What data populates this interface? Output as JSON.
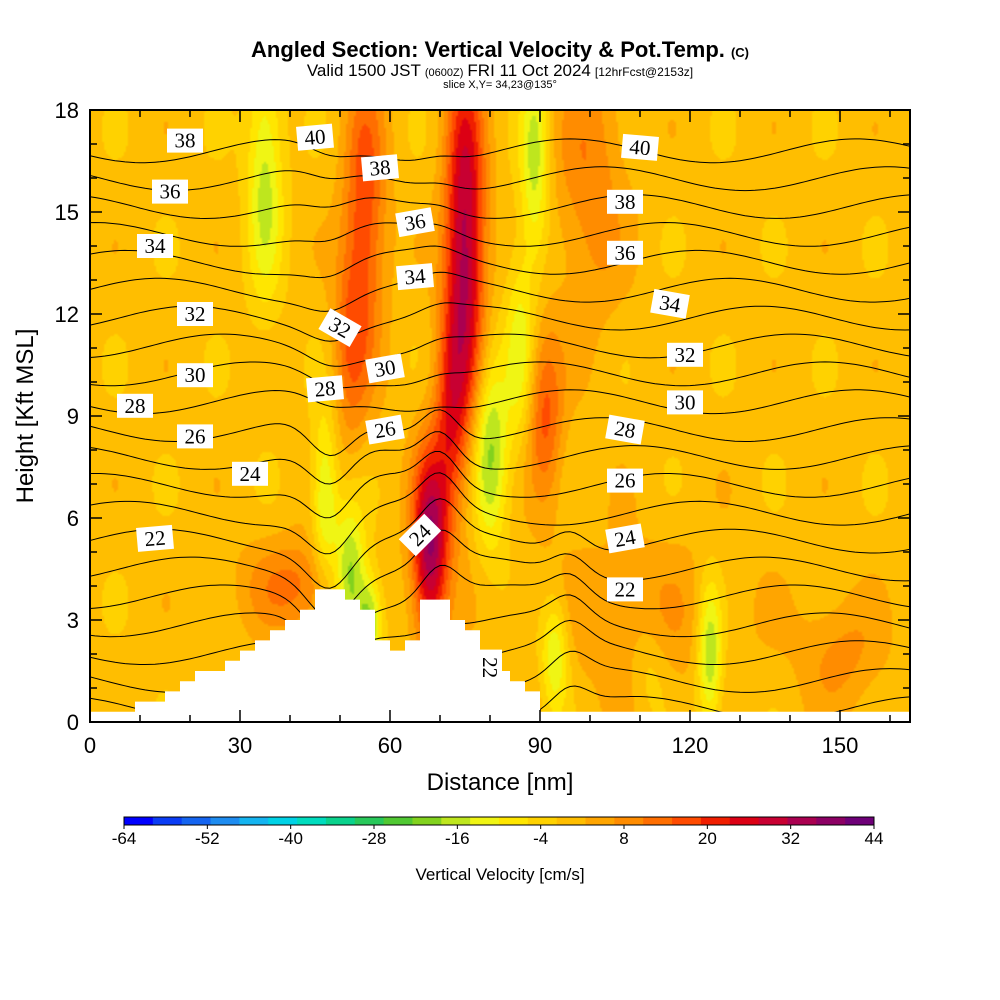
{
  "chart_data": {
    "type": "heatmap",
    "title": "Angled Section: Vertical Velocity & Pot.Temp.",
    "title_mark": "(C)",
    "subtitle_parts": [
      "Valid 1500 JST",
      "(0600Z)",
      "FRI 11 Oct 2024",
      "[12hrFcst@2153z]"
    ],
    "slice_label": "slice X,Y= 34,23@135°",
    "xlabel": "Distance [nm]",
    "ylabel": "Height [Kft MSL]",
    "xlim": [
      0,
      164
    ],
    "ylim": [
      0,
      18
    ],
    "xticks": [
      0,
      30,
      60,
      90,
      120,
      150
    ],
    "yticks": [
      0,
      3,
      6,
      9,
      12,
      15,
      18
    ],
    "x_tick_labels": [
      "0",
      "30",
      "60",
      "90",
      "120",
      "150"
    ],
    "y_tick_labels": [
      "0",
      "3",
      "6",
      "9",
      "12",
      "15",
      "18"
    ],
    "colorbar": {
      "label": "Vertical Velocity [cm/s]",
      "range": [
        -64,
        44
      ],
      "tick_values": [
        -64,
        -52,
        -40,
        -28,
        -16,
        -4,
        8,
        20,
        32,
        44
      ],
      "tick_labels": [
        "-64",
        "-52",
        "-40",
        "-28",
        "-16",
        "-4",
        "8",
        "20",
        "32",
        "44"
      ],
      "colors": [
        "#0000ff",
        "#0a3cf5",
        "#1464f0",
        "#1e8cf0",
        "#14b4f0",
        "#00d2e6",
        "#00dcbe",
        "#0ad28c",
        "#28c85a",
        "#50c832",
        "#82d21e",
        "#bee61e",
        "#f0f514",
        "#ffe600",
        "#ffd200",
        "#ffbe00",
        "#ffa500",
        "#ff8c00",
        "#ff6e00",
        "#ff4b00",
        "#f01e00",
        "#dc0014",
        "#c80032",
        "#aa0050",
        "#8c0064",
        "#6e0078"
      ]
    },
    "terrain": {
      "units": "nm / Kft",
      "points": [
        [
          0,
          0
        ],
        [
          0,
          0.3
        ],
        [
          9,
          0.3
        ],
        [
          9,
          0.6
        ],
        [
          15,
          0.6
        ],
        [
          15,
          0.9
        ],
        [
          18,
          0.9
        ],
        [
          18,
          1.2
        ],
        [
          21,
          1.2
        ],
        [
          21,
          1.5
        ],
        [
          27,
          1.5
        ],
        [
          27,
          1.8
        ],
        [
          30,
          1.8
        ],
        [
          30,
          2.1
        ],
        [
          33,
          2.1
        ],
        [
          33,
          2.4
        ],
        [
          36,
          2.4
        ],
        [
          36,
          2.7
        ],
        [
          39,
          2.7
        ],
        [
          39,
          3.0
        ],
        [
          42,
          3.0
        ],
        [
          42,
          3.3
        ],
        [
          45,
          3.3
        ],
        [
          45,
          3.9
        ],
        [
          51,
          3.9
        ],
        [
          51,
          3.6
        ],
        [
          54,
          3.6
        ],
        [
          54,
          3.3
        ],
        [
          57,
          3.3
        ],
        [
          57,
          2.4
        ],
        [
          60,
          2.4
        ],
        [
          60,
          2.1
        ],
        [
          63,
          2.1
        ],
        [
          63,
          2.4
        ],
        [
          66,
          2.4
        ],
        [
          66,
          3.6
        ],
        [
          72,
          3.6
        ],
        [
          72,
          3.0
        ],
        [
          75,
          3.0
        ],
        [
          75,
          2.7
        ],
        [
          78,
          2.7
        ],
        [
          78,
          2.1
        ],
        [
          81,
          2.1
        ],
        [
          81,
          1.5
        ],
        [
          84,
          1.5
        ],
        [
          84,
          1.2
        ],
        [
          87,
          1.2
        ],
        [
          87,
          0.9
        ],
        [
          90,
          0.9
        ],
        [
          90,
          0.3
        ],
        [
          164,
          0.3
        ],
        [
          164,
          0
        ]
      ]
    },
    "features": [
      {
        "name": "updraft",
        "x_nm": 75,
        "y_kft": 14,
        "sx_nm": 2.8,
        "sy_kft": 3.8,
        "w": 34
      },
      {
        "name": "updraft",
        "x_nm": 68,
        "y_kft": 5.2,
        "sx_nm": 2.5,
        "sy_kft": 2.0,
        "w": 36
      },
      {
        "name": "updraft",
        "x_nm": 72,
        "y_kft": 9.0,
        "sx_nm": 2.2,
        "sy_kft": 2.2,
        "w": 16
      },
      {
        "name": "updraft",
        "x_nm": 55,
        "y_kft": 15,
        "sx_nm": 3.0,
        "sy_kft": 3.0,
        "w": 18
      },
      {
        "name": "updraft",
        "x_nm": 52,
        "y_kft": 11,
        "sx_nm": 2.5,
        "sy_kft": 2.0,
        "w": 12
      },
      {
        "name": "updraft",
        "x_nm": 91,
        "y_kft": 9.0,
        "sx_nm": 2.5,
        "sy_kft": 1.8,
        "w": 16
      },
      {
        "name": "updraft",
        "x_nm": 100,
        "y_kft": 16,
        "sx_nm": 5.0,
        "sy_kft": 3.0,
        "w": 10
      },
      {
        "name": "updraft",
        "x_nm": 42,
        "y_kft": 4.0,
        "sx_nm": 8.0,
        "sy_kft": 1.0,
        "w": 12
      },
      {
        "name": "updraft",
        "x_nm": 110,
        "y_kft": 3.0,
        "sx_nm": 14.0,
        "sy_kft": 1.8,
        "w": 6
      },
      {
        "name": "updraft",
        "x_nm": 150,
        "y_kft": 2.0,
        "sx_nm": 6.0,
        "sy_kft": 1.2,
        "w": 8
      },
      {
        "name": "downdraft",
        "x_nm": 35,
        "y_kft": 16,
        "sx_nm": 2.5,
        "sy_kft": 2.5,
        "w": -16
      },
      {
        "name": "downdraft",
        "x_nm": 89,
        "y_kft": 16.5,
        "sx_nm": 2.0,
        "sy_kft": 2.2,
        "w": -16
      },
      {
        "name": "downdraft",
        "x_nm": 47,
        "y_kft": 6.5,
        "sx_nm": 1.8,
        "sy_kft": 1.8,
        "w": -16
      },
      {
        "name": "downdraft",
        "x_nm": 52,
        "y_kft": 4.2,
        "sx_nm": 2.2,
        "sy_kft": 1.4,
        "w": -24
      },
      {
        "name": "downdraft",
        "x_nm": 56,
        "y_kft": 3.0,
        "sx_nm": 1.8,
        "sy_kft": 1.0,
        "w": -20
      },
      {
        "name": "downdraft",
        "x_nm": 80,
        "y_kft": 8.0,
        "sx_nm": 2.5,
        "sy_kft": 2.0,
        "w": -20
      },
      {
        "name": "downdraft",
        "x_nm": 86,
        "y_kft": 11,
        "sx_nm": 2.0,
        "sy_kft": 2.0,
        "w": -12
      },
      {
        "name": "downdraft",
        "x_nm": 93,
        "y_kft": 2.0,
        "sx_nm": 2.0,
        "sy_kft": 1.2,
        "w": -16
      },
      {
        "name": "downdraft",
        "x_nm": 124,
        "y_kft": 2.0,
        "sx_nm": 1.8,
        "sy_kft": 1.5,
        "w": -20
      },
      {
        "name": "downdraft",
        "x_nm": 112,
        "y_kft": 1.5,
        "sx_nm": 2.5,
        "sy_kft": 1.0,
        "w": -6
      }
    ],
    "background_w": 0,
    "theta_contour_labels": [
      {
        "text": "38",
        "x_nm": 19,
        "y_kft": 17.1,
        "angle": 0
      },
      {
        "text": "36",
        "x_nm": 16,
        "y_kft": 15.6,
        "angle": 0
      },
      {
        "text": "34",
        "x_nm": 13,
        "y_kft": 14.0,
        "angle": 0
      },
      {
        "text": "32",
        "x_nm": 21,
        "y_kft": 12.0,
        "angle": 0
      },
      {
        "text": "30",
        "x_nm": 21,
        "y_kft": 10.2,
        "angle": 0
      },
      {
        "text": "28",
        "x_nm": 9,
        "y_kft": 9.3,
        "angle": 0
      },
      {
        "text": "26",
        "x_nm": 21,
        "y_kft": 8.4,
        "angle": 0
      },
      {
        "text": "24",
        "x_nm": 32,
        "y_kft": 7.3,
        "angle": 0
      },
      {
        "text": "22",
        "x_nm": 13,
        "y_kft": 5.4,
        "angle": -5
      },
      {
        "text": "40",
        "x_nm": 45,
        "y_kft": 17.2,
        "angle": -5
      },
      {
        "text": "38",
        "x_nm": 58,
        "y_kft": 16.3,
        "angle": -5
      },
      {
        "text": "36",
        "x_nm": 65,
        "y_kft": 14.7,
        "angle": -10
      },
      {
        "text": "34",
        "x_nm": 65,
        "y_kft": 13.1,
        "angle": -5
      },
      {
        "text": "32",
        "x_nm": 50,
        "y_kft": 11.6,
        "angle": 30
      },
      {
        "text": "30",
        "x_nm": 59,
        "y_kft": 10.4,
        "angle": -10
      },
      {
        "text": "28",
        "x_nm": 47,
        "y_kft": 9.8,
        "angle": -5
      },
      {
        "text": "26",
        "x_nm": 59,
        "y_kft": 8.6,
        "angle": -10
      },
      {
        "text": "24",
        "x_nm": 66,
        "y_kft": 5.5,
        "angle": -45
      },
      {
        "text": "40",
        "x_nm": 110,
        "y_kft": 16.9,
        "angle": 5
      },
      {
        "text": "38",
        "x_nm": 107,
        "y_kft": 15.3,
        "angle": 0
      },
      {
        "text": "36",
        "x_nm": 107,
        "y_kft": 13.8,
        "angle": 0
      },
      {
        "text": "34",
        "x_nm": 116,
        "y_kft": 12.3,
        "angle": 10
      },
      {
        "text": "32",
        "x_nm": 119,
        "y_kft": 10.8,
        "angle": 0
      },
      {
        "text": "30",
        "x_nm": 119,
        "y_kft": 9.4,
        "angle": 0
      },
      {
        "text": "28",
        "x_nm": 107,
        "y_kft": 8.6,
        "angle": 10
      },
      {
        "text": "26",
        "x_nm": 107,
        "y_kft": 7.1,
        "angle": 0
      },
      {
        "text": "24",
        "x_nm": 107,
        "y_kft": 5.4,
        "angle": -10
      },
      {
        "text": "22",
        "x_nm": 107,
        "y_kft": 3.9,
        "angle": 0
      },
      {
        "text": "22",
        "x_nm": 80,
        "y_kft": 1.6,
        "angle": 90
      }
    ],
    "theta_contour_levels": [
      21,
      22,
      23,
      24,
      25,
      26,
      27,
      28,
      29,
      30,
      31,
      32,
      33,
      34,
      35,
      36,
      37,
      38,
      39,
      40,
      41
    ]
  }
}
